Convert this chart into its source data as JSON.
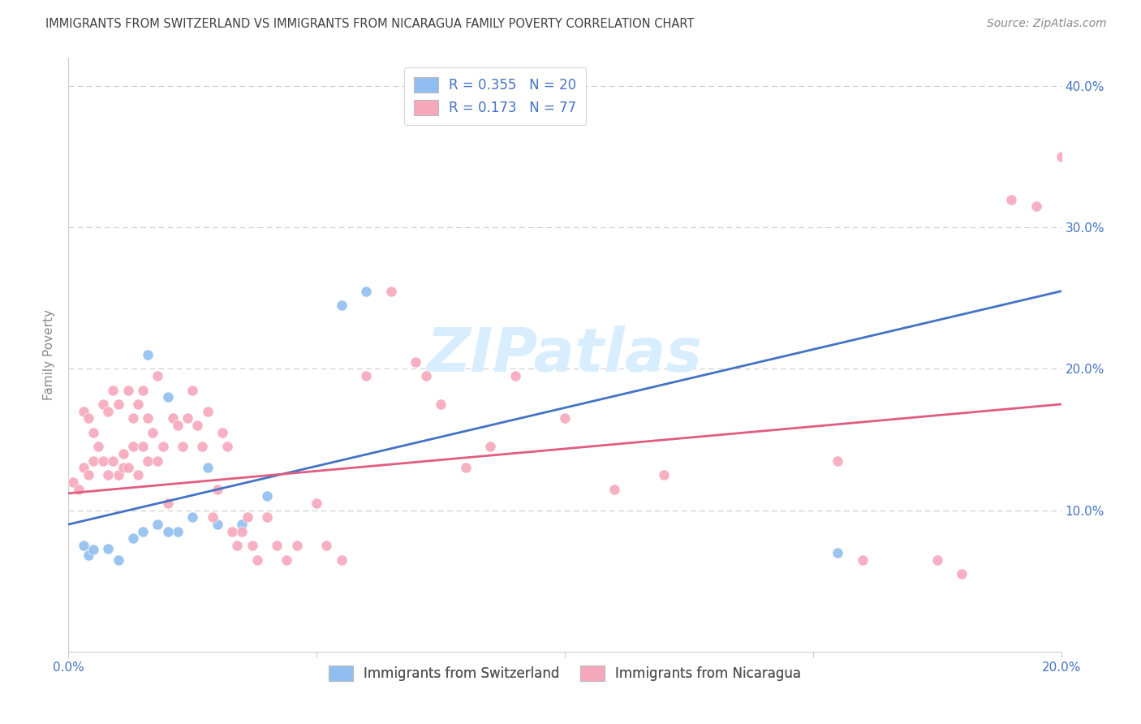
{
  "title": "IMMIGRANTS FROM SWITZERLAND VS IMMIGRANTS FROM NICARAGUA FAMILY POVERTY CORRELATION CHART",
  "source": "Source: ZipAtlas.com",
  "ylabel": "Family Poverty",
  "xlim": [
    0.0,
    0.2
  ],
  "ylim": [
    0.0,
    0.42
  ],
  "xtick_values": [
    0.0,
    0.05,
    0.1,
    0.15,
    0.2
  ],
  "xtick_labels": [
    "0.0%",
    "",
    "",
    "",
    "20.0%"
  ],
  "ytick_values": [
    0.1,
    0.2,
    0.3,
    0.4
  ],
  "ytick_labels": [
    "10.0%",
    "20.0%",
    "30.0%",
    "40.0%"
  ],
  "legend_sw_text": "R = 0.355   N = 20",
  "legend_ni_text": "R = 0.173   N = 77",
  "legend_bottom_sw": "Immigrants from Switzerland",
  "legend_bottom_ni": "Immigrants from Nicaragua",
  "color_sw": "#90BEF0",
  "color_ni": "#F5A8BC",
  "line_color_sw": "#4472C4",
  "line_color_ni": "#E05C80",
  "bg_color": "#FFFFFF",
  "grid_color": "#CCCCCC",
  "title_color": "#404040",
  "source_color": "#888888",
  "ylabel_color": "#888888",
  "tick_color": "#4472C4",
  "legend_text_color": "#4472C4",
  "watermark": "ZIPatlas",
  "watermark_color": "#D8EEFF",
  "sw_line_x": [
    0.0,
    0.2
  ],
  "sw_line_y": [
    0.09,
    0.255
  ],
  "ni_line_x": [
    0.0,
    0.2
  ],
  "ni_line_y": [
    0.112,
    0.175
  ],
  "x_sw": [
    0.003,
    0.004,
    0.005,
    0.008,
    0.01,
    0.013,
    0.015,
    0.016,
    0.018,
    0.02,
    0.022,
    0.025,
    0.028,
    0.03,
    0.035,
    0.04,
    0.055,
    0.06,
    0.155,
    0.02
  ],
  "y_sw": [
    0.075,
    0.068,
    0.072,
    0.073,
    0.065,
    0.08,
    0.085,
    0.21,
    0.09,
    0.18,
    0.085,
    0.095,
    0.13,
    0.09,
    0.09,
    0.11,
    0.245,
    0.255,
    0.07,
    0.085
  ],
  "x_ni": [
    0.001,
    0.002,
    0.003,
    0.003,
    0.004,
    0.004,
    0.005,
    0.005,
    0.006,
    0.007,
    0.007,
    0.008,
    0.008,
    0.009,
    0.009,
    0.01,
    0.01,
    0.011,
    0.011,
    0.012,
    0.012,
    0.013,
    0.013,
    0.014,
    0.014,
    0.015,
    0.015,
    0.016,
    0.016,
    0.017,
    0.018,
    0.018,
    0.019,
    0.02,
    0.021,
    0.022,
    0.023,
    0.024,
    0.025,
    0.026,
    0.027,
    0.028,
    0.029,
    0.03,
    0.031,
    0.032,
    0.033,
    0.034,
    0.035,
    0.036,
    0.037,
    0.038,
    0.04,
    0.042,
    0.044,
    0.046,
    0.05,
    0.052,
    0.055,
    0.06,
    0.065,
    0.07,
    0.072,
    0.075,
    0.08,
    0.085,
    0.09,
    0.1,
    0.11,
    0.12,
    0.155,
    0.16,
    0.175,
    0.18,
    0.19,
    0.195,
    0.2
  ],
  "y_ni": [
    0.12,
    0.115,
    0.13,
    0.17,
    0.125,
    0.165,
    0.135,
    0.155,
    0.145,
    0.135,
    0.175,
    0.125,
    0.17,
    0.135,
    0.185,
    0.125,
    0.175,
    0.13,
    0.14,
    0.13,
    0.185,
    0.145,
    0.165,
    0.125,
    0.175,
    0.145,
    0.185,
    0.135,
    0.165,
    0.155,
    0.135,
    0.195,
    0.145,
    0.105,
    0.165,
    0.16,
    0.145,
    0.165,
    0.185,
    0.16,
    0.145,
    0.17,
    0.095,
    0.115,
    0.155,
    0.145,
    0.085,
    0.075,
    0.085,
    0.095,
    0.075,
    0.065,
    0.095,
    0.075,
    0.065,
    0.075,
    0.105,
    0.075,
    0.065,
    0.195,
    0.255,
    0.205,
    0.195,
    0.175,
    0.13,
    0.145,
    0.195,
    0.165,
    0.115,
    0.125,
    0.135,
    0.065,
    0.065,
    0.055,
    0.32,
    0.315,
    0.35
  ]
}
